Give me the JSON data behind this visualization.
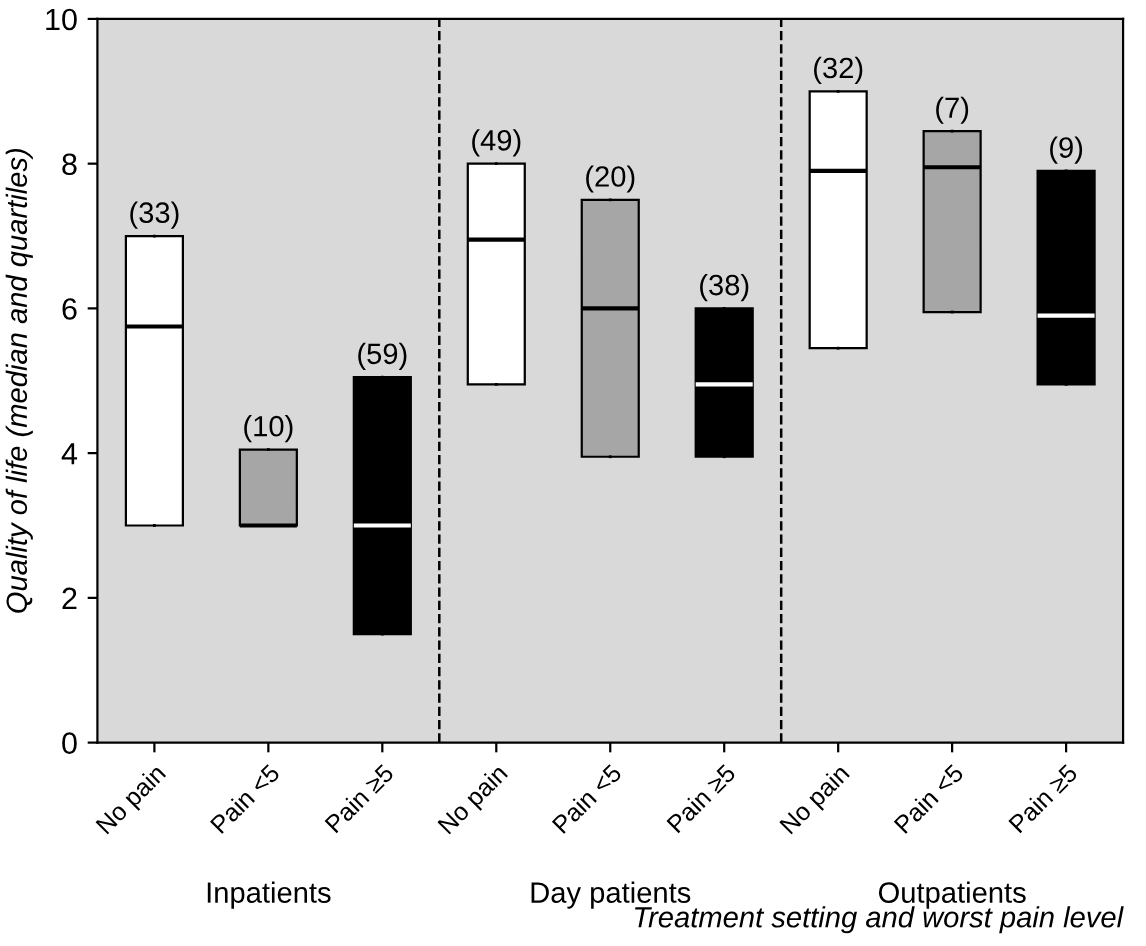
{
  "chart_data": {
    "type": "box",
    "categories": [
      "No pain",
      "Pain <5",
      "Pain ≥5",
      "No pain",
      "Pain <5",
      "Pain ≥5",
      "No pain",
      "Pain <5",
      "Pain ≥5"
    ],
    "boxes": [
      {
        "low": 3,
        "q1": 3,
        "median": 5.75,
        "q3": 7,
        "high": 7
      },
      {
        "low": 3,
        "q1": 3,
        "median": 3,
        "q3": 4.05,
        "high": 4.05
      },
      {
        "low": 1.5,
        "q1": 1.5,
        "median": 3,
        "q3": 5.05,
        "high": 5.05
      },
      {
        "low": 4.95,
        "q1": 4.95,
        "median": 6.95,
        "q3": 8,
        "high": 8
      },
      {
        "low": 3.95,
        "q1": 3.95,
        "median": 6,
        "q3": 7.5,
        "high": 7.5
      },
      {
        "low": 3.95,
        "q1": 3.95,
        "median": 4.95,
        "q3": 6,
        "high": 6
      },
      {
        "low": 5.45,
        "q1": 5.45,
        "median": 7.9,
        "q3": 9,
        "high": 9
      },
      {
        "low": 5.95,
        "q1": 5.95,
        "median": 7.95,
        "q3": 8.45,
        "high": 8.45
      },
      {
        "low": 4.95,
        "q1": 4.95,
        "median": 5.9,
        "q3": 7.9,
        "high": 7.9
      }
    ],
    "colors": [
      "#ffffff",
      "#a6a6a6",
      "#000000",
      "#ffffff",
      "#a6a6a6",
      "#000000",
      "#ffffff",
      "#a6a6a6",
      "#000000"
    ],
    "annotations": [
      "(33)",
      "(10)",
      "(59)",
      "(49)",
      "(20)",
      "(38)",
      "(32)",
      "(7)",
      "(9)",
      "Inpatients",
      "Day patients",
      "Outpatients"
    ],
    "xlabel": "Treatment setting and worst pain level",
    "ylabel": "Quality of life (median and quartiles)",
    "ylim": [
      0,
      10
    ],
    "yticks": [
      0,
      2,
      4,
      6,
      8,
      10
    ],
    "grid": false
  }
}
